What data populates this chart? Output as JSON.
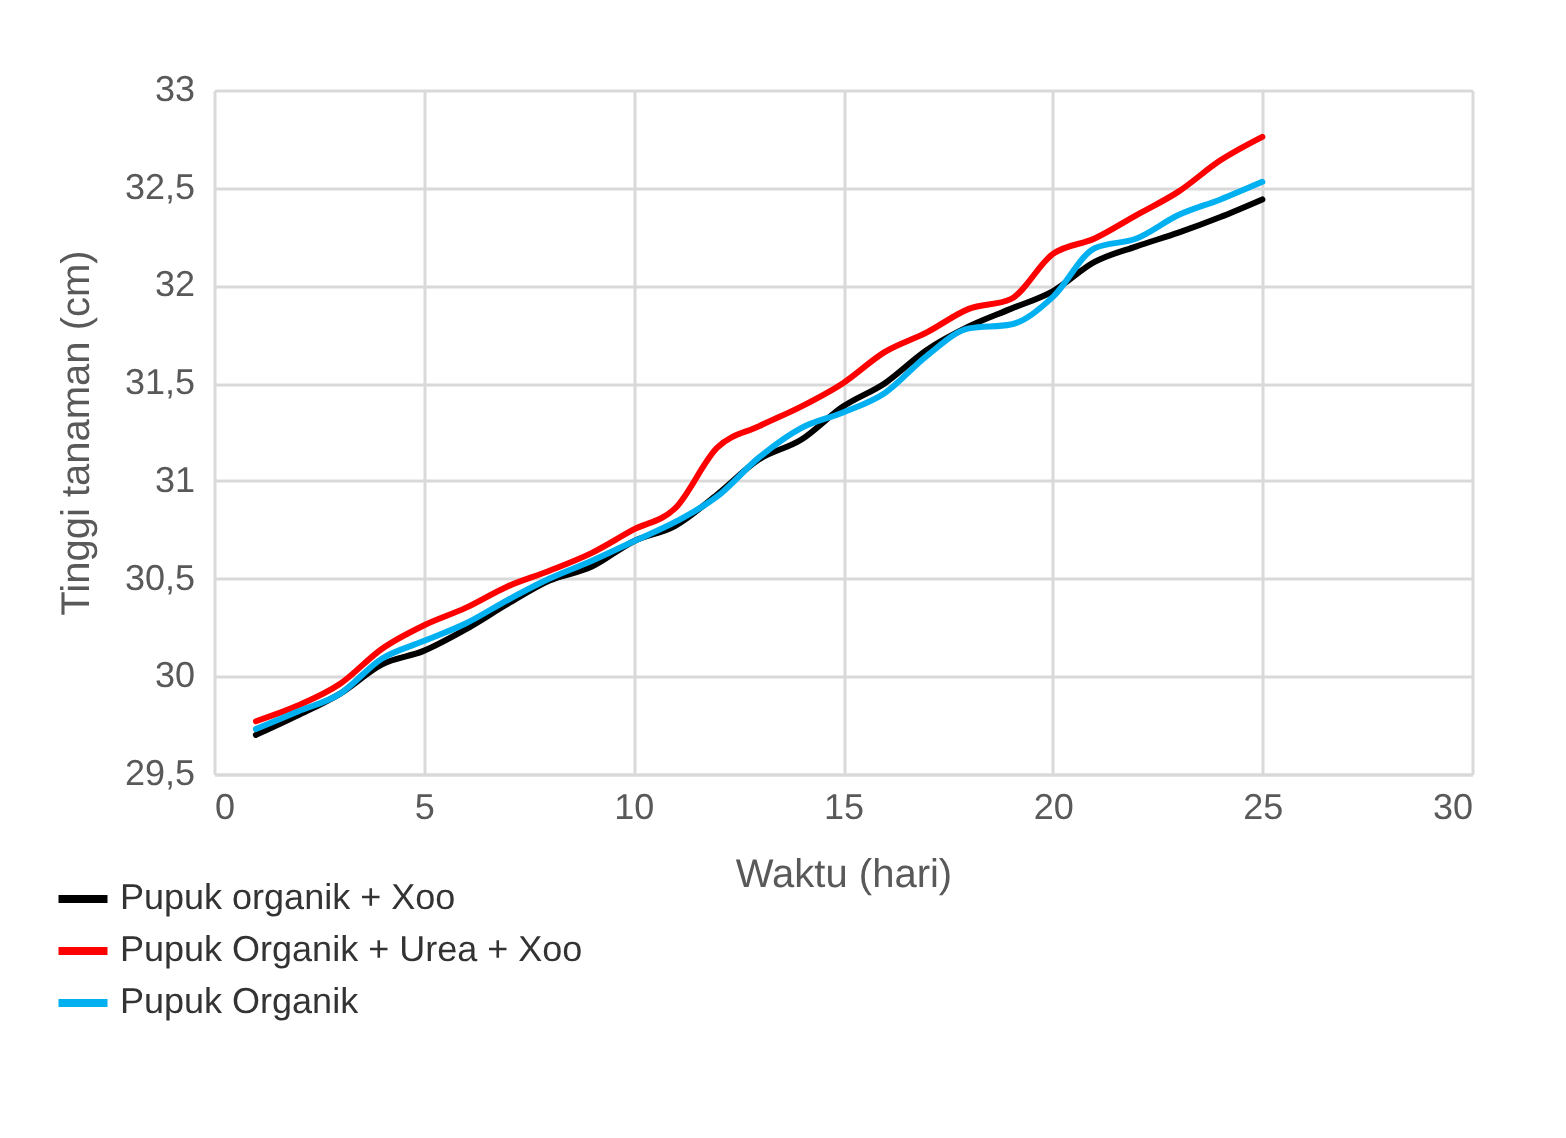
{
  "chart_data": {
    "type": "line",
    "xlabel": "Waktu (hari)",
    "ylabel": "Tinggi tanaman (cm)",
    "x": [
      1,
      2,
      3,
      4,
      5,
      6,
      7,
      8,
      9,
      10,
      11,
      12,
      13,
      14,
      15,
      16,
      17,
      18,
      19,
      20,
      21,
      22,
      23,
      24,
      25
    ],
    "series": [
      {
        "name": "Pupuk organik + Xoo",
        "color": "#000000",
        "values": [
          29.7,
          29.8,
          29.91,
          30.06,
          30.13,
          30.24,
          30.37,
          30.49,
          30.56,
          30.69,
          30.77,
          30.93,
          31.11,
          31.21,
          31.38,
          31.5,
          31.67,
          31.79,
          31.88,
          31.97,
          32.12,
          32.2,
          32.27,
          32.35,
          32.44
        ]
      },
      {
        "name": "Pupuk Organik + Urea + Xoo",
        "color": "#ff0000",
        "values": [
          29.77,
          29.85,
          29.96,
          30.14,
          30.26,
          30.35,
          30.46,
          30.54,
          30.63,
          30.75,
          30.86,
          31.17,
          31.28,
          31.38,
          31.5,
          31.66,
          31.76,
          31.88,
          31.93,
          32.16,
          32.24,
          32.36,
          32.48,
          32.64,
          32.76
        ]
      },
      {
        "name": "Pupuk Organik",
        "color": "#00b0f0",
        "values": [
          29.73,
          29.82,
          29.91,
          30.09,
          30.18,
          30.27,
          30.39,
          30.5,
          30.59,
          30.69,
          30.79,
          30.92,
          31.12,
          31.27,
          31.35,
          31.45,
          31.64,
          31.78,
          31.8,
          31.94,
          32.19,
          32.24,
          32.36,
          32.44,
          32.53
        ]
      }
    ],
    "xlim": [
      0,
      30
    ],
    "xticks": [
      0,
      5,
      10,
      15,
      20,
      25,
      30
    ],
    "ylim": [
      29.5,
      33
    ],
    "yticks": [
      {
        "value": 29.5,
        "label": "29,5"
      },
      30,
      {
        "value": 30.5,
        "label": "30,5"
      },
      31,
      {
        "value": 31.5,
        "label": "31,5"
      },
      32,
      {
        "value": 32.5,
        "label": "32,5"
      },
      33
    ],
    "grid": true,
    "legend": "bottom",
    "line_style": "solid",
    "marker": "none"
  }
}
